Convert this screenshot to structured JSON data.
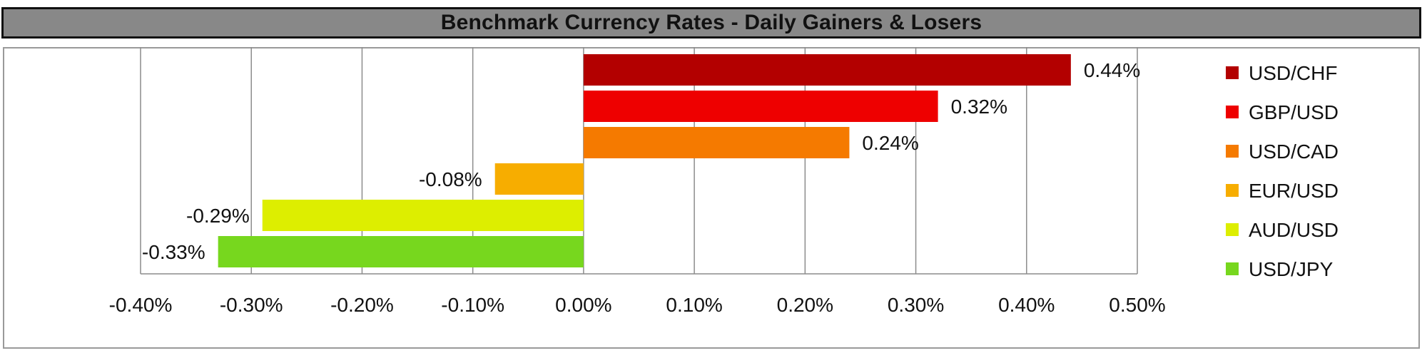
{
  "chart_data": {
    "type": "bar",
    "orientation": "horizontal",
    "title": "Benchmark Currency Rates - Daily Gainers & Losers",
    "categories": [
      "USD/CHF",
      "GBP/USD",
      "USD/CAD",
      "EUR/USD",
      "AUD/USD",
      "USD/JPY"
    ],
    "values": [
      0.44,
      0.32,
      0.24,
      -0.08,
      -0.29,
      -0.33
    ],
    "data_labels": [
      "0.44%",
      "0.32%",
      "0.24%",
      "-0.08%",
      "-0.29%",
      "-0.33%"
    ],
    "colors": [
      "#B30000",
      "#EE0000",
      "#F57A00",
      "#F7AD00",
      "#DDEE00",
      "#77D71E"
    ],
    "xlim": [
      -0.4,
      0.5
    ],
    "xticks": [
      -0.4,
      -0.3,
      -0.2,
      -0.1,
      0.0,
      0.1,
      0.2,
      0.3,
      0.4,
      0.5
    ],
    "xtick_labels": [
      "-0.40%",
      "-0.30%",
      "-0.20%",
      "-0.10%",
      "0.00%",
      "0.10%",
      "0.20%",
      "0.30%",
      "0.40%",
      "0.50%"
    ],
    "xlabel": "",
    "ylabel": "",
    "grid": "vertical",
    "legend": {
      "position": "right",
      "entries": [
        "USD/CHF",
        "GBP/USD",
        "USD/CAD",
        "EUR/USD",
        "AUD/USD",
        "USD/JPY"
      ]
    }
  }
}
